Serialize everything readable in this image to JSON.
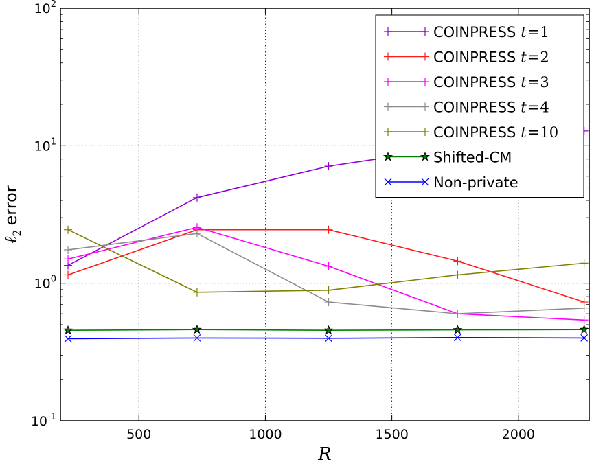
{
  "chart_data": {
    "type": "line",
    "title": "",
    "xlabel": "R",
    "ylabel": "error",
    "ylabel_symbol": "ℓ",
    "ylabel_subscript": "2",
    "xlim": [
      190,
      2280
    ],
    "ylim": [
      0.1,
      100
    ],
    "yscale": "log",
    "grid": true,
    "legend_position": "top-right",
    "x_ticks": [
      500,
      1000,
      1500,
      2000
    ],
    "x_tick_labels": [
      "500",
      "1000",
      "1500",
      "2000"
    ],
    "y_ticks": [
      0.1,
      1,
      10,
      100
    ],
    "y_tick_labels": [
      {
        "base": "10",
        "exp": "-1"
      },
      {
        "base": "10",
        "exp": "0"
      },
      {
        "base": "10",
        "exp": "1"
      },
      {
        "base": "10",
        "exp": "2"
      }
    ],
    "x": [
      220,
      730,
      1250,
      1760,
      2260
    ],
    "series": [
      {
        "name": "COINPRESS t=1",
        "label_text": "COINPRESS",
        "label_var": "t",
        "label_eq": "=",
        "label_val": "1",
        "color": "#9400d3",
        "marker": "plus",
        "values": [
          1.35,
          4.2,
          7.1,
          9.8,
          12.8
        ]
      },
      {
        "name": "COINPRESS t=2",
        "label_text": "COINPRESS",
        "label_var": "t",
        "label_eq": "=",
        "label_val": "2",
        "color": "#ff1a1a",
        "marker": "plus",
        "values": [
          1.15,
          2.45,
          2.45,
          1.45,
          0.73
        ]
      },
      {
        "name": "COINPRESS t=3",
        "label_text": "COINPRESS",
        "label_var": "t",
        "label_eq": "=",
        "label_val": "3",
        "color": "#ff00ff",
        "marker": "plus",
        "values": [
          1.5,
          2.55,
          1.33,
          0.6,
          0.54
        ]
      },
      {
        "name": "COINPRESS t=4",
        "label_text": "COINPRESS",
        "label_var": "t",
        "label_eq": "=",
        "label_val": "4",
        "color": "#8c8c8c",
        "marker": "plus",
        "values": [
          1.75,
          2.3,
          0.73,
          0.6,
          0.66
        ]
      },
      {
        "name": "COINPRESS t=10",
        "label_text": "COINPRESS",
        "label_var": "t",
        "label_eq": "=",
        "label_val": "10",
        "color": "#808000",
        "marker": "plus",
        "values": [
          2.45,
          0.86,
          0.89,
          1.15,
          1.4
        ]
      },
      {
        "name": "Shifted-CM",
        "label_text": "Shifted-CM",
        "color": "#008000",
        "marker": "star",
        "values": [
          0.455,
          0.46,
          0.455,
          0.458,
          0.46
        ]
      },
      {
        "name": "Non-private",
        "label_text": "Non-private",
        "color": "#0000ff",
        "marker": "x",
        "values": [
          0.395,
          0.4,
          0.398,
          0.403,
          0.4
        ]
      }
    ]
  }
}
